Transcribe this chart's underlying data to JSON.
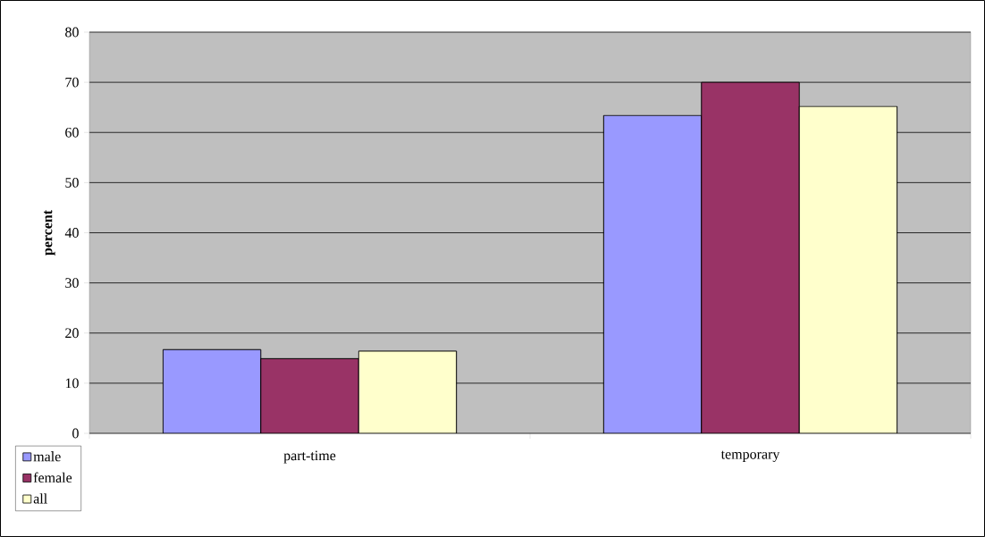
{
  "chart_data": {
    "type": "bar",
    "ylabel": "percent",
    "categories": [
      "part-time",
      "temporary"
    ],
    "series": [
      {
        "name": "male",
        "color": "#9999ff",
        "values": [
          16.7,
          63.4
        ]
      },
      {
        "name": "female",
        "color": "#993366",
        "values": [
          14.9,
          70.0
        ]
      },
      {
        "name": "all",
        "color": "#ffffcc",
        "values": [
          16.4,
          65.2
        ]
      }
    ],
    "ylim": [
      0,
      80
    ],
    "yticks": [
      0,
      10,
      20,
      30,
      40,
      50,
      60,
      70,
      80
    ],
    "grid": "y",
    "legend": "bottom left"
  }
}
